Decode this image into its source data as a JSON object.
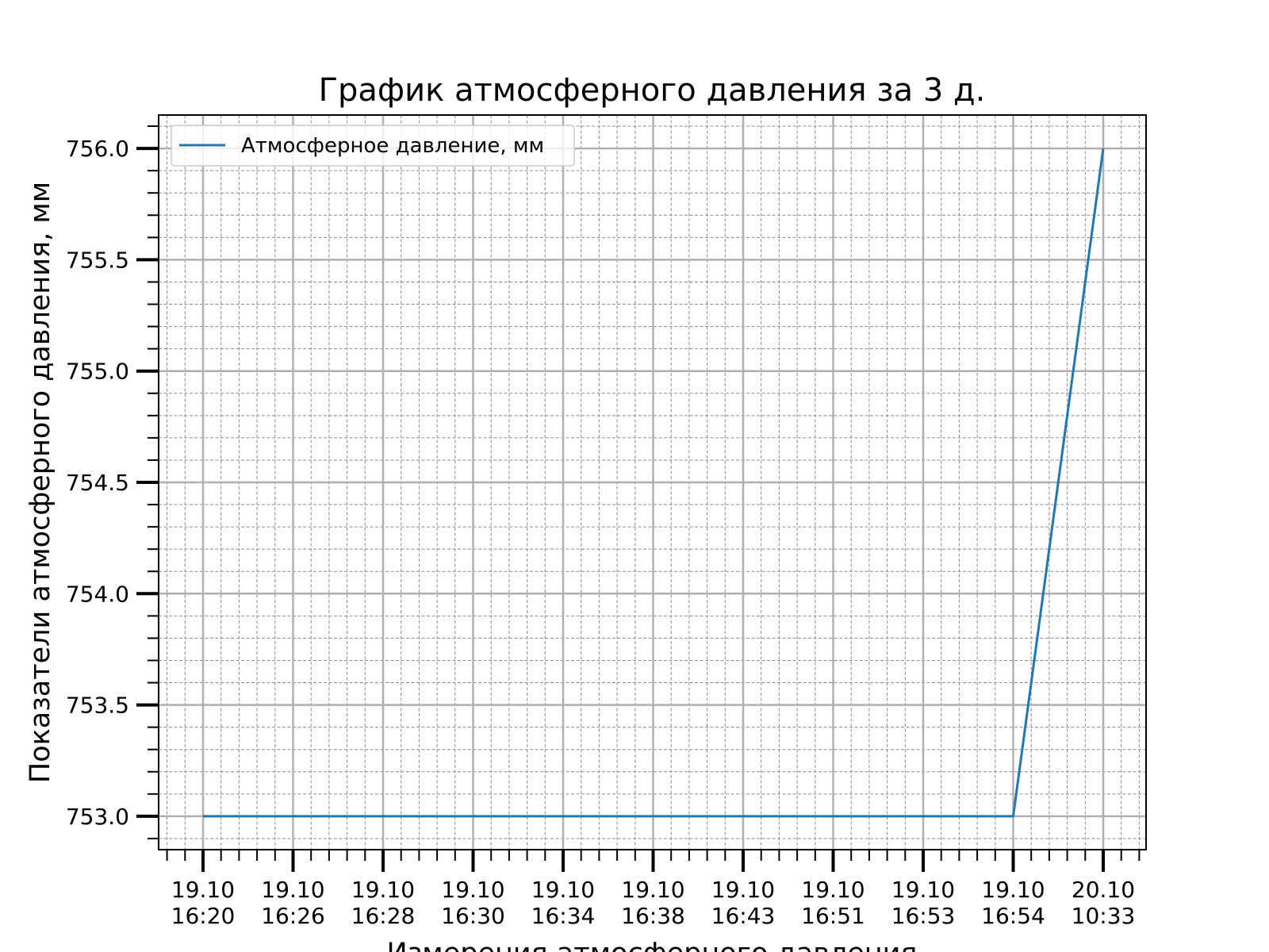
{
  "chart_data": {
    "type": "line",
    "title": "График атмосферного давления за 3 д.",
    "xlabel": "Измерения атмосферного давления",
    "ylabel": "Показатели атмосферного давления, мм",
    "categories": [
      [
        "19.10",
        "16:20"
      ],
      [
        "19.10",
        "16:26"
      ],
      [
        "19.10",
        "16:28"
      ],
      [
        "19.10",
        "16:30"
      ],
      [
        "19.10",
        "16:34"
      ],
      [
        "19.10",
        "16:38"
      ],
      [
        "19.10",
        "16:43"
      ],
      [
        "19.10",
        "16:51"
      ],
      [
        "19.10",
        "16:53"
      ],
      [
        "19.10",
        "16:54"
      ],
      [
        "20.10",
        "10:33"
      ]
    ],
    "series": [
      {
        "name": "Атмосферное давление, мм",
        "color": "#1f77b4",
        "values": [
          753.0,
          753.0,
          753.0,
          753.0,
          753.0,
          753.0,
          753.0,
          753.0,
          753.0,
          753.0,
          756.0
        ]
      }
    ],
    "ylim": [
      752.85,
      756.15
    ],
    "yticks": [
      "753.0",
      "753.5",
      "754.0",
      "754.5",
      "755.0",
      "755.5",
      "756.0"
    ],
    "grid": true,
    "minor_grid": true,
    "legend_position": "upper-left"
  }
}
